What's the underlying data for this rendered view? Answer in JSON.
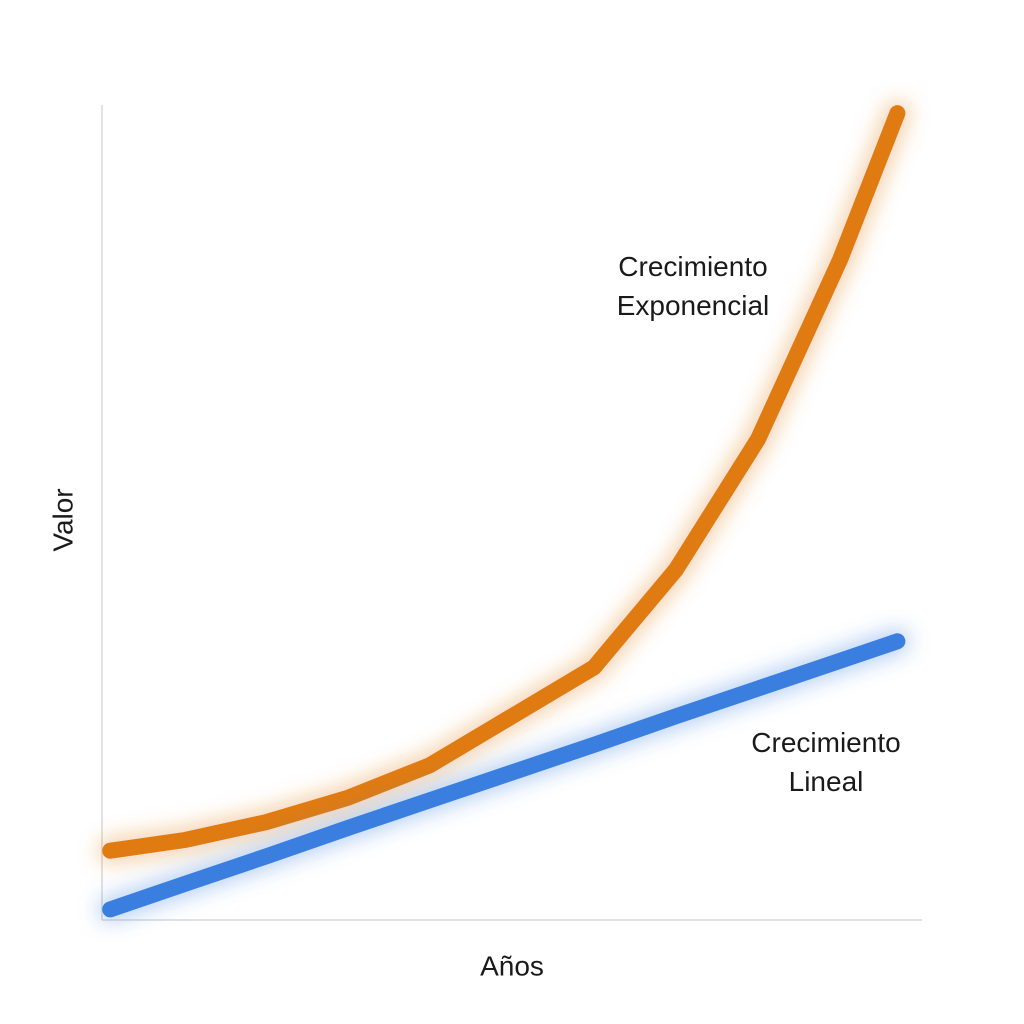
{
  "chart_data": {
    "type": "line",
    "x_label": "Años",
    "y_label": "Valor",
    "x": [
      0.1,
      1,
      2,
      3,
      4,
      5,
      6,
      7,
      8,
      9,
      9.7
    ],
    "series": [
      {
        "name": "Crecimiento Exponencial",
        "color": "#e07b12",
        "values": [
          0.85,
          0.98,
          1.2,
          1.5,
          1.9,
          2.5,
          3.1,
          4.3,
          5.9,
          8.1,
          9.9
        ]
      },
      {
        "name": "Crecimiento Lineal",
        "color": "#3a7fe0",
        "values": [
          0.13,
          0.44,
          0.78,
          1.13,
          1.47,
          1.81,
          2.15,
          2.5,
          2.84,
          3.18,
          3.42
        ]
      }
    ],
    "xlim": [
      0,
      10
    ],
    "ylim": [
      0,
      10
    ],
    "grid": false
  }
}
